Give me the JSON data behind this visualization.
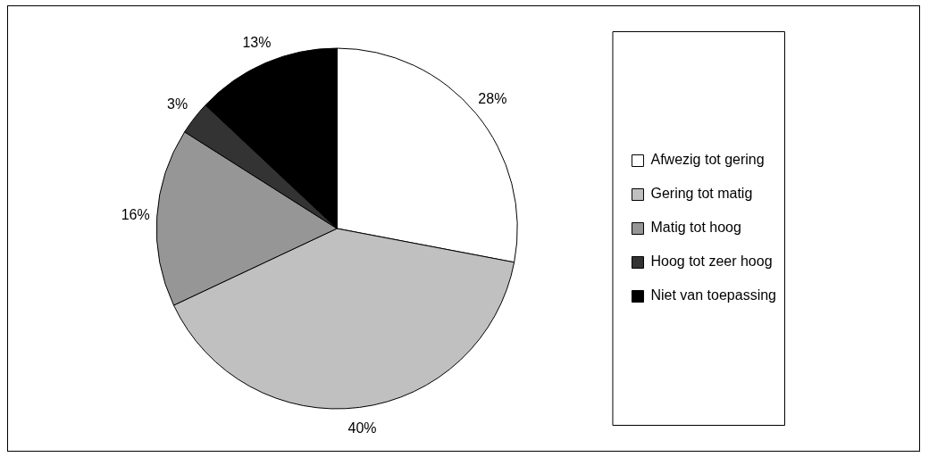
{
  "chart_data": {
    "type": "pie",
    "categories": [
      "Afwezig tot gering",
      "Gering tot matig",
      "Matig tot hoog",
      "Hoog tot zeer hoog",
      "Niet van toepassing"
    ],
    "values": [
      28,
      40,
      16,
      3,
      13
    ],
    "colors": [
      "#ffffff",
      "#c0c0c0",
      "#969696",
      "#333333",
      "#000000"
    ],
    "value_labels": [
      "28%",
      "40%",
      "16%",
      "3%",
      "13%"
    ],
    "legend": "right"
  }
}
